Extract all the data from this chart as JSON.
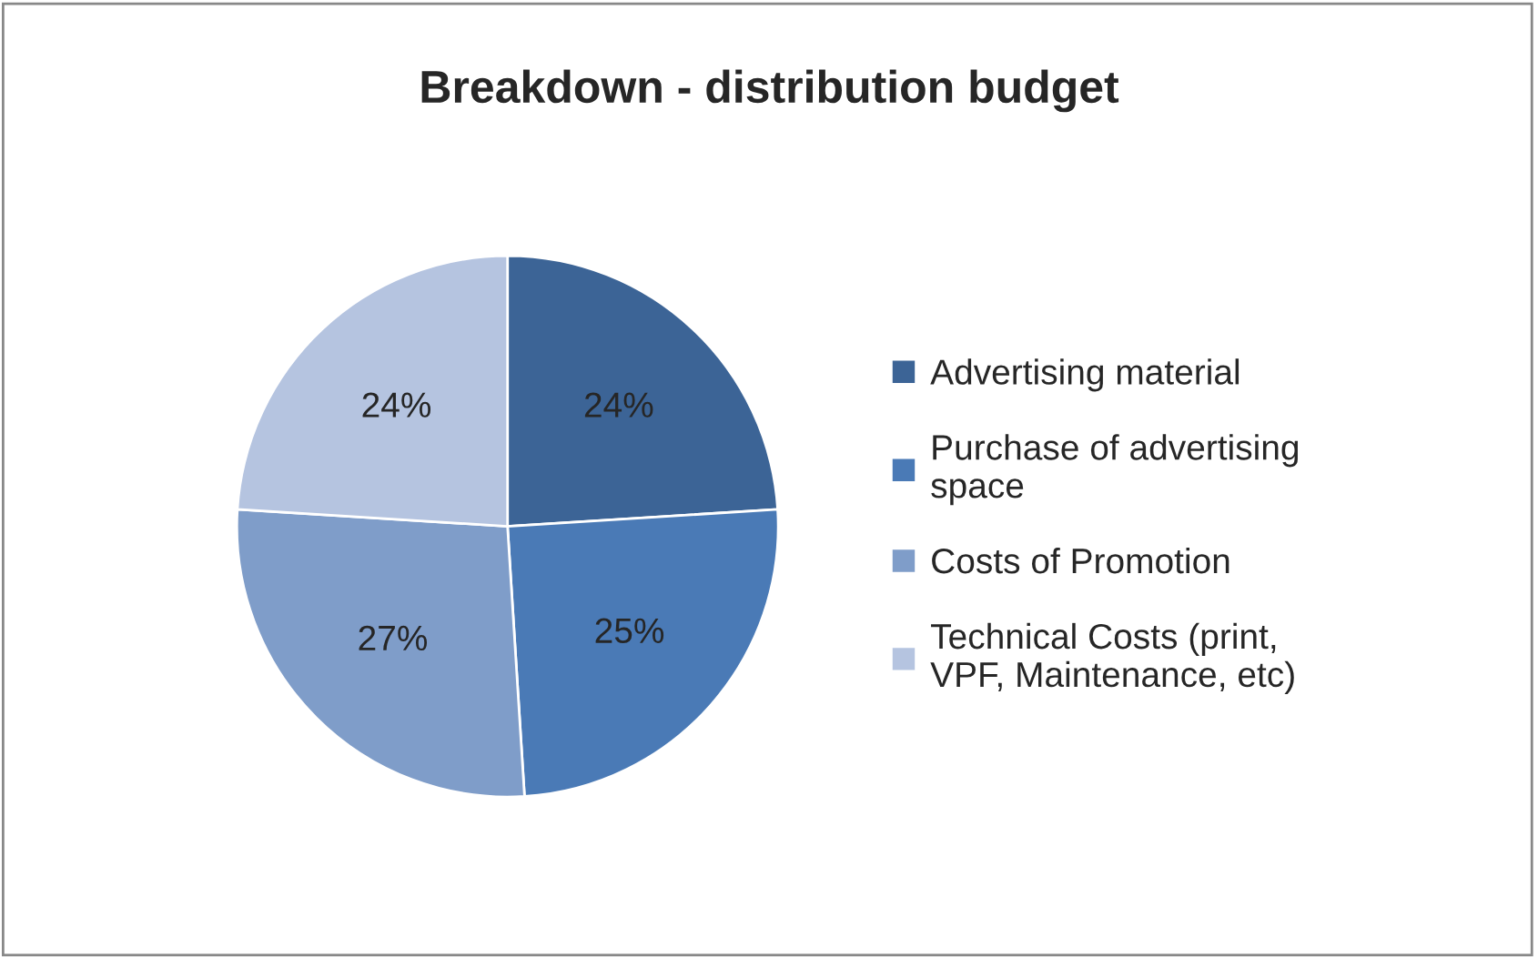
{
  "chart_data": {
    "type": "pie",
    "title": "Breakdown - distribution budget",
    "categories": [
      "Advertising material",
      "Purchase of advertising space",
      "Costs of Promotion",
      "Technical Costs (print, VPF, Maintenance, etc)"
    ],
    "values": [
      24,
      25,
      27,
      24
    ],
    "value_labels": [
      "24%",
      "25%",
      "27%",
      "24%"
    ],
    "colors": [
      "#3c6496",
      "#4a7ab6",
      "#7f9dc9",
      "#b5c4e0"
    ],
    "legend": "right"
  }
}
